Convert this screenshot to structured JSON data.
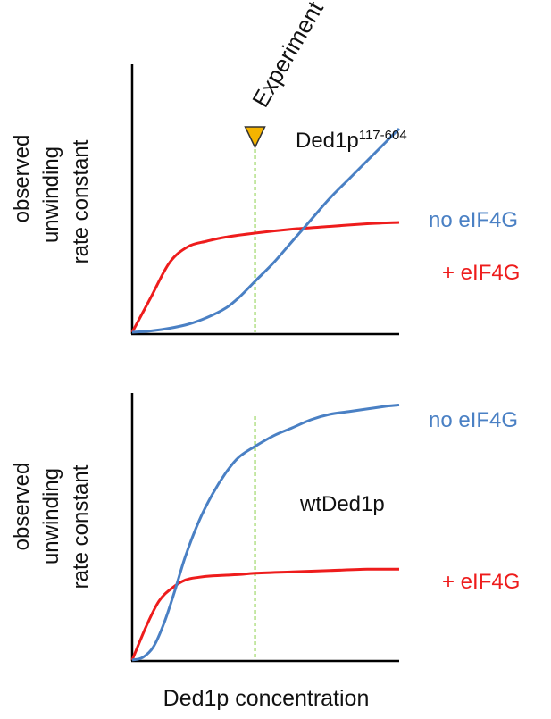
{
  "experiment_label": "Experiment",
  "xlabel": "Ded1p concentration",
  "colors": {
    "no_eif4g": "#4a80c4",
    "plus_eif4g": "#ee1c1c",
    "marker": "#f5b400",
    "guide": "#8fd14f",
    "axis": "#000000"
  },
  "chart_data": [
    {
      "type": "line",
      "panel": "top",
      "annotation": "Ded1p",
      "annotation_superscript": "117-604",
      "ylabel": [
        "observed",
        "unwinding",
        "rate constant"
      ],
      "xlabel": "",
      "xlim": [
        0,
        1
      ],
      "ylim": [
        0,
        1
      ],
      "experiment_x": 0.46,
      "series": [
        {
          "name": "no eIF4G",
          "color": "#4a80c4",
          "x": [
            0,
            0.07,
            0.14,
            0.21,
            0.28,
            0.35,
            0.4,
            0.46,
            0.53,
            0.6,
            0.67,
            0.74,
            0.81,
            0.88,
            0.95,
            1.0
          ],
          "y": [
            0,
            0.005,
            0.015,
            0.03,
            0.055,
            0.09,
            0.13,
            0.19,
            0.26,
            0.34,
            0.42,
            0.5,
            0.57,
            0.64,
            0.71,
            0.76
          ]
        },
        {
          "name": "+ eIF4G",
          "color": "#ee1c1c",
          "x": [
            0,
            0.07,
            0.14,
            0.21,
            0.28,
            0.35,
            0.46,
            0.6,
            0.74,
            0.88,
            1.0
          ],
          "y": [
            0,
            0.13,
            0.26,
            0.32,
            0.34,
            0.355,
            0.37,
            0.385,
            0.395,
            0.405,
            0.41
          ]
        }
      ]
    },
    {
      "type": "line",
      "panel": "bottom",
      "annotation": "wtDed1p",
      "ylabel": [
        "observed",
        "unwinding",
        "rate constant"
      ],
      "xlabel": "Ded1p concentration",
      "xlim": [
        0,
        1
      ],
      "ylim": [
        0,
        1
      ],
      "experiment_x": 0.46,
      "series": [
        {
          "name": "no eIF4G",
          "color": "#4a80c4",
          "x": [
            0,
            0.04,
            0.08,
            0.12,
            0.16,
            0.2,
            0.25,
            0.3,
            0.35,
            0.4,
            0.46,
            0.53,
            0.6,
            0.67,
            0.74,
            0.81,
            0.88,
            0.95,
            1.0
          ],
          "y": [
            0,
            0.01,
            0.05,
            0.14,
            0.26,
            0.39,
            0.52,
            0.62,
            0.7,
            0.76,
            0.8,
            0.84,
            0.87,
            0.9,
            0.92,
            0.93,
            0.94,
            0.95,
            0.955
          ]
        },
        {
          "name": "+ eIF4G",
          "color": "#ee1c1c",
          "x": [
            0,
            0.05,
            0.1,
            0.15,
            0.2,
            0.25,
            0.3,
            0.4,
            0.46,
            0.6,
            0.74,
            0.88,
            1.0
          ],
          "y": [
            0,
            0.12,
            0.22,
            0.27,
            0.3,
            0.31,
            0.315,
            0.32,
            0.325,
            0.33,
            0.335,
            0.34,
            0.34
          ]
        }
      ]
    }
  ]
}
